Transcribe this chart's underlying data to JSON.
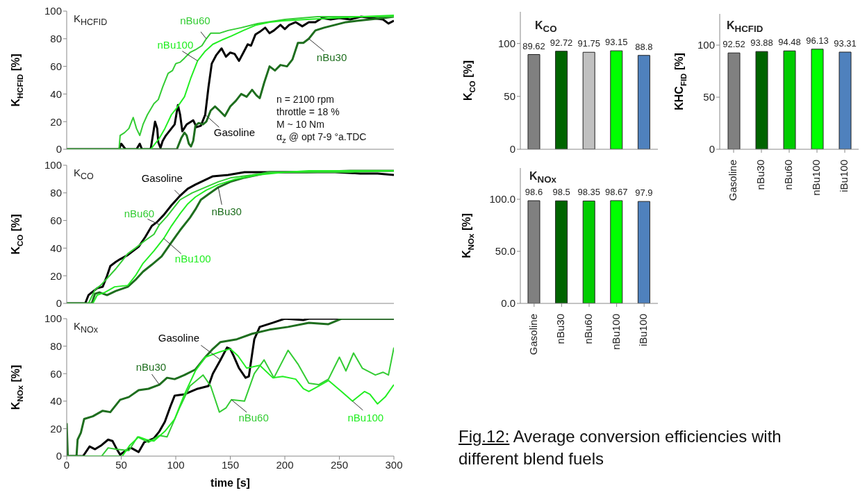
{
  "chart_data": [
    {
      "type": "line",
      "title": "K$_{HCFID}$",
      "ylabel": "K$_{HCFID}$ [%]",
      "xlim": [
        0,
        300
      ],
      "xticks": [
        0,
        50,
        100,
        150,
        200,
        250,
        300
      ],
      "ylim": [
        0,
        100
      ],
      "yticks": [
        0,
        20,
        40,
        60,
        80,
        100
      ],
      "tick_labels": "y",
      "annotations": [
        "n = 2100 rpm",
        "throttle = 18 %",
        "M ~ 10 Nm",
        "α$_{z}$ @ opt 7-9 °a.TDC"
      ],
      "series": [
        {
          "name": "Gasoline",
          "color": "#000000",
          "x": [
            0,
            48,
            50,
            52,
            54,
            64,
            67,
            69,
            77,
            80,
            81,
            83,
            84,
            86,
            88,
            91,
            95,
            99,
            102,
            104,
            106,
            110,
            116,
            119,
            123,
            127,
            130,
            133,
            137,
            142,
            146,
            150,
            154,
            158,
            162,
            166,
            169,
            173,
            177,
            182,
            186,
            190,
            196,
            200,
            204,
            210,
            216,
            222,
            228,
            234,
            242,
            250,
            260,
            270,
            280,
            290,
            295,
            300
          ],
          "values": [
            0,
            0,
            4,
            2,
            0,
            0,
            4,
            0,
            0,
            15,
            20,
            15,
            5,
            1,
            6,
            10,
            14,
            18,
            32,
            25,
            13,
            18,
            21,
            16,
            17,
            25,
            45,
            62,
            68,
            73,
            67,
            70,
            69,
            64,
            70,
            76,
            75,
            83,
            85,
            88,
            84,
            86,
            90,
            87,
            90,
            92,
            89,
            92,
            92,
            95,
            94,
            95,
            94,
            96,
            95,
            94,
            91,
            93
          ]
        },
        {
          "name": "nBu30",
          "color": "#1e6e1e",
          "x": [
            0,
            101,
            105,
            108,
            110,
            112,
            114,
            116,
            118,
            121,
            125,
            128,
            132,
            136,
            140,
            145,
            150,
            155,
            160,
            165,
            170,
            174,
            177,
            181,
            186,
            191,
            196,
            202,
            207,
            212,
            217,
            222,
            228,
            236,
            246,
            256,
            266,
            278,
            290,
            300
          ],
          "values": [
            0,
            0,
            8,
            12,
            10,
            4,
            2,
            6,
            17,
            19,
            18,
            20,
            28,
            31,
            28,
            24,
            31,
            35,
            40,
            38,
            43,
            39,
            37,
            48,
            60,
            57,
            61,
            60,
            65,
            77,
            77,
            80,
            86,
            88,
            90,
            92,
            93,
            94,
            95,
            96
          ]
        },
        {
          "name": "nBu60",
          "color": "#33cc33",
          "x": [
            0,
            48,
            49,
            53,
            57,
            61,
            64,
            67,
            70,
            74,
            80,
            84,
            88,
            93,
            97,
            100,
            104,
            108,
            113,
            118,
            124,
            128,
            132,
            140,
            148,
            160,
            175,
            200,
            230,
            260,
            300
          ],
          "values": [
            0,
            0,
            10,
            12,
            15,
            23,
            15,
            10,
            18,
            25,
            33,
            36,
            45,
            55,
            57,
            62,
            63,
            66,
            70,
            72,
            75,
            80,
            84,
            84,
            86,
            88,
            91,
            94,
            96,
            96,
            96
          ]
        },
        {
          "name": "nBu100",
          "color": "#22ee22",
          "x": [
            0,
            77,
            85,
            90,
            96,
            101,
            108,
            114,
            120,
            127,
            134,
            142,
            151,
            162,
            174,
            186,
            198,
            220,
            245,
            270,
            300
          ],
          "values": [
            0,
            0,
            8,
            15,
            25,
            30,
            38,
            52,
            64,
            71,
            76,
            79,
            82,
            86,
            90,
            92,
            93,
            94,
            95,
            96,
            97
          ]
        }
      ]
    },
    {
      "type": "line",
      "title": "K$_{CO}$",
      "ylabel": "K$_{CO}$ [%]",
      "xlim": [
        0,
        300
      ],
      "xticks": [
        0,
        50,
        100,
        150,
        200,
        250,
        300
      ],
      "ylim": [
        0,
        100
      ],
      "yticks": [
        0,
        20,
        40,
        60,
        80,
        100
      ],
      "tick_labels": "y",
      "series": [
        {
          "name": "Gasoline",
          "color": "#000000",
          "x": [
            0,
            17,
            20,
            23,
            28,
            33,
            37,
            40,
            45,
            49,
            56,
            61,
            66,
            72,
            78,
            83,
            89,
            96,
            104,
            111,
            118,
            126,
            134,
            148,
            163,
            198,
            246,
            269,
            285,
            300
          ],
          "values": [
            0,
            0,
            6,
            8,
            11,
            12,
            20,
            27,
            30,
            32,
            35,
            38,
            41,
            48,
            56,
            59,
            64,
            71,
            78,
            83,
            86,
            89,
            92,
            93,
            95,
            95,
            95,
            94,
            94,
            93
          ]
        },
        {
          "name": "nBu30",
          "color": "#1e6e1e",
          "x": [
            0,
            23,
            26,
            30,
            37,
            45,
            56,
            63,
            70,
            78,
            87,
            95,
            104,
            113,
            118,
            123,
            130,
            139,
            150,
            163,
            175,
            186,
            220,
            260,
            300
          ],
          "values": [
            0,
            0,
            7,
            8,
            6,
            9,
            12,
            17,
            23,
            28,
            34,
            43,
            53,
            62,
            68,
            75,
            79,
            84,
            88,
            91,
            93,
            95,
            95,
            96,
            96
          ]
        },
        {
          "name": "nBu60",
          "color": "#33cc33",
          "x": [
            0,
            20,
            26,
            31,
            37,
            45,
            50,
            56,
            63,
            71,
            80,
            85,
            92,
            98,
            104,
            115,
            127,
            139,
            151,
            170,
            186,
            220,
            260,
            300
          ],
          "values": [
            0,
            0,
            10,
            13,
            18,
            25,
            30,
            36,
            40,
            45,
            50,
            57,
            63,
            69,
            75,
            80,
            84,
            88,
            91,
            93,
            95,
            95,
            95,
            96
          ]
        },
        {
          "name": "nBu100",
          "color": "#22ee22",
          "x": [
            0,
            24,
            28,
            35,
            44,
            56,
            63,
            70,
            80,
            89,
            96,
            104,
            111,
            118,
            128,
            139,
            155,
            175,
            200,
            222,
            260,
            300
          ],
          "values": [
            0,
            0,
            6,
            8,
            12,
            13,
            20,
            29,
            38,
            47,
            56,
            65,
            72,
            77,
            82,
            86,
            90,
            93,
            95,
            96,
            96,
            96
          ]
        }
      ]
    },
    {
      "type": "line",
      "title": "K$_{NOx}$",
      "ylabel": "K$_{NOx}$ [%]",
      "xlabel": "time [s]",
      "xlim": [
        0,
        300
      ],
      "xticks": [
        0,
        50,
        100,
        150,
        200,
        250,
        300
      ],
      "ylim": [
        0,
        100
      ],
      "yticks": [
        0,
        20,
        40,
        60,
        80,
        100
      ],
      "series": [
        {
          "name": "Gasoline",
          "color": "#000000",
          "x": [
            0,
            15,
            21,
            26,
            32,
            38,
            42,
            46,
            49,
            54,
            59,
            66,
            71,
            80,
            85,
            90,
            95,
            99,
            108,
            120,
            130,
            134,
            141,
            147,
            150,
            153,
            158,
            164,
            167,
            172,
            177,
            189,
            200,
            217,
            222,
            260,
            300
          ],
          "values": [
            0,
            0,
            7,
            5,
            8,
            12,
            11,
            5,
            1,
            4,
            6,
            3,
            10,
            13,
            18,
            25,
            36,
            44,
            45,
            49,
            51,
            60,
            70,
            79,
            78,
            73,
            64,
            57,
            58,
            85,
            94,
            97,
            100,
            99,
            100,
            100,
            100
          ]
        },
        {
          "name": "nBu30",
          "color": "#1e6e1e",
          "x": [
            0,
            1,
            9,
            10,
            13,
            16,
            24,
            33,
            40,
            49,
            57,
            66,
            75,
            85,
            92,
            99,
            108,
            118,
            127,
            134,
            141,
            156,
            170,
            186,
            203,
            222,
            240,
            252,
            275,
            300
          ],
          "values": [
            24,
            0,
            0,
            12,
            17,
            27,
            29,
            33,
            32,
            41,
            43,
            48,
            49,
            52,
            57,
            56,
            59,
            63,
            72,
            78,
            83,
            85,
            89,
            92,
            94,
            97,
            96,
            100,
            100,
            100
          ]
        },
        {
          "name": "nBu60",
          "color": "#33cc33",
          "x": [
            0,
            32,
            38,
            45,
            57,
            65,
            75,
            85,
            92,
            104,
            113,
            125,
            132,
            140,
            146,
            151,
            163,
            172,
            181,
            190,
            203,
            212,
            222,
            231,
            240,
            245,
            250,
            256,
            263,
            271,
            283,
            290,
            295,
            300
          ],
          "values": [
            0,
            0,
            6,
            5,
            4,
            14,
            10,
            15,
            14,
            36,
            51,
            59,
            51,
            32,
            35,
            41,
            40,
            60,
            70,
            57,
            77,
            67,
            53,
            52,
            56,
            64,
            72,
            62,
            75,
            64,
            59,
            61,
            59,
            79
          ]
        },
        {
          "name": "nBu100",
          "color": "#22ee22",
          "x": [
            0,
            51,
            58,
            66,
            73,
            80,
            90,
            99,
            108,
            118,
            127,
            141,
            150,
            157,
            165,
            177,
            189,
            198,
            210,
            217,
            222,
            231,
            240,
            252,
            262,
            273,
            278,
            285,
            292,
            300
          ],
          "values": [
            0,
            0,
            8,
            14,
            12,
            11,
            18,
            27,
            45,
            62,
            72,
            76,
            78,
            73,
            64,
            66,
            57,
            58,
            56,
            49,
            47,
            51,
            55,
            47,
            40,
            47,
            45,
            38,
            43,
            52
          ]
        }
      ]
    },
    {
      "type": "bar",
      "title": "K$_{CO}$",
      "ylabel": "K$_{CO}$ [%]",
      "categories": [
        null,
        null,
        null,
        null,
        null
      ],
      "values": [
        89.62,
        92.72,
        91.75,
        93.15,
        88.8
      ],
      "colors": [
        "#808080",
        "#006400",
        "#c0c0c0",
        "#00ff00",
        "#4f81bd"
      ],
      "ylim": [
        0,
        130
      ],
      "yticks": [
        0,
        50,
        100
      ],
      "data_labels": true,
      "tick_labels": "y"
    },
    {
      "type": "bar",
      "title": "K$_{HCFID}$",
      "ylabel": "KHC$_{FID}$ [%]",
      "categories": [
        "Gasoline",
        "nBu30",
        "nBu60",
        "nBu100",
        "iBu100"
      ],
      "values": [
        92.52,
        93.88,
        94.48,
        96.13,
        93.31
      ],
      "colors": [
        "#808080",
        "#006400",
        "#00cc00",
        "#00ff00",
        "#4f81bd"
      ],
      "ylim": [
        0,
        130
      ],
      "yticks": [
        0,
        50,
        100
      ],
      "data_labels": true
    },
    {
      "type": "bar",
      "title": "K$_{NOx}$",
      "ylabel": "K$_{NOx}$ [%]",
      "categories": [
        "Gasoline",
        "nBu30",
        "nBu60",
        "nBu100",
        "iBu100"
      ],
      "values": [
        98.6,
        98.5,
        98.35,
        98.67,
        97.9
      ],
      "colors": [
        "#808080",
        "#006400",
        "#00cc00",
        "#00ff00",
        "#4f81bd"
      ],
      "ylim": [
        0,
        130
      ],
      "yticks": [
        {
          "value": 0,
          "label": "0.0"
        },
        {
          "value": 50,
          "label": "50.0"
        },
        {
          "value": 100,
          "label": "100.0"
        }
      ],
      "data_labels": true,
      "annotations": [
        "Fig.12: Average conversion efficiencies with different blend fuels"
      ]
    }
  ]
}
